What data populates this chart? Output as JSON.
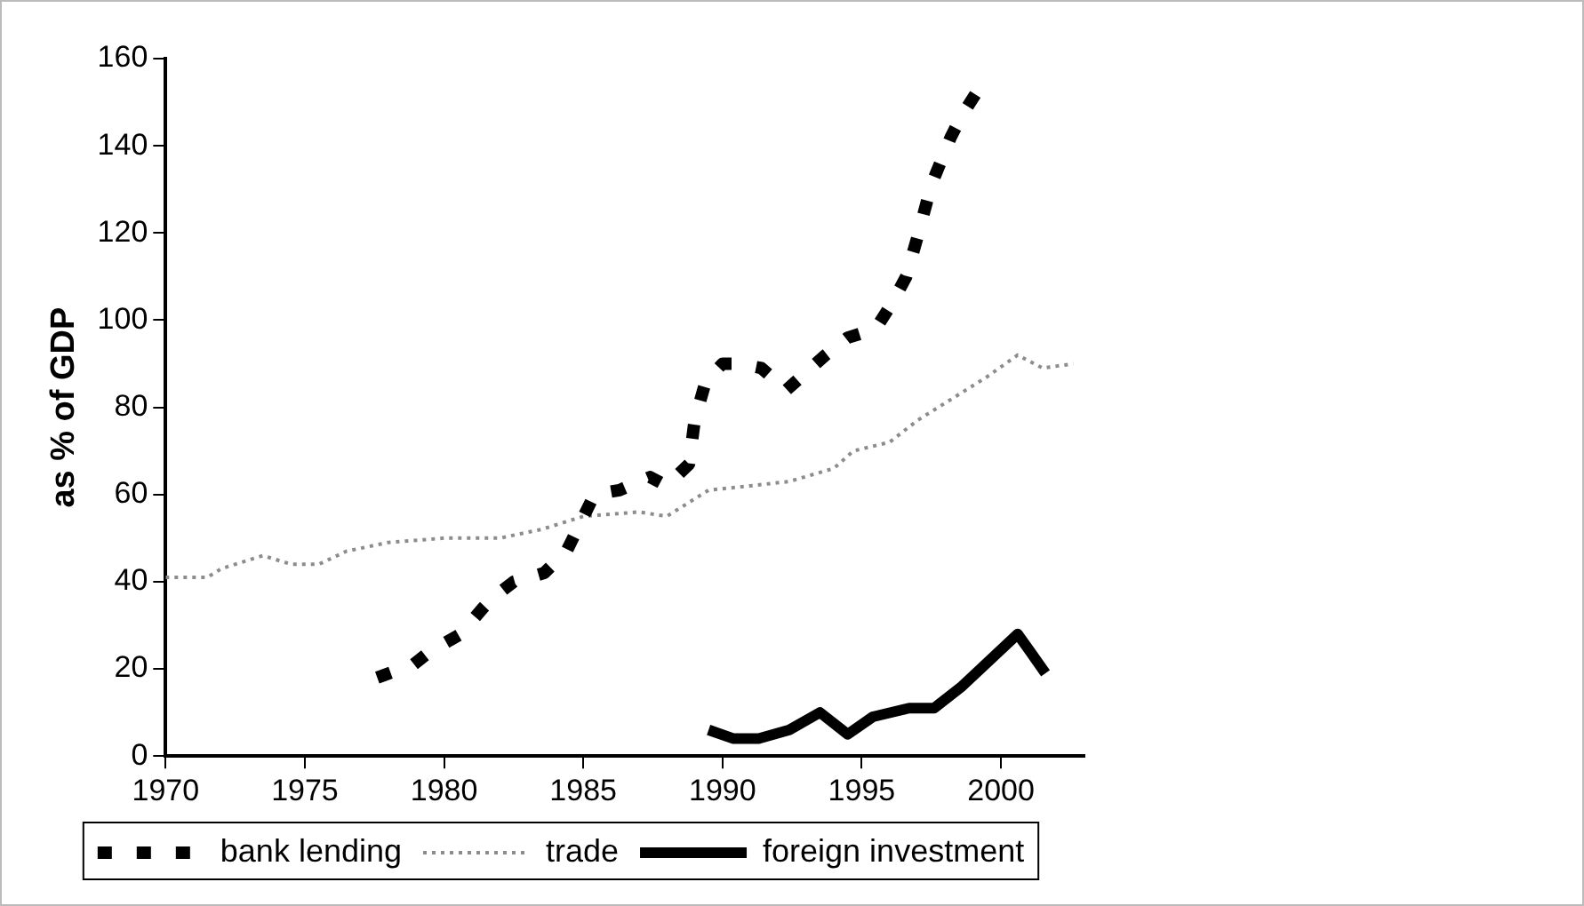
{
  "chart_data": {
    "type": "line",
    "ylabel": "as % of GDP",
    "xlim": [
      1970,
      2003
    ],
    "xticks": [
      1970,
      1975,
      1980,
      1985,
      1990,
      1995,
      2000
    ],
    "ylim": [
      0,
      160
    ],
    "yticks": [
      0,
      20,
      40,
      60,
      80,
      100,
      120,
      140,
      160
    ],
    "grid": false,
    "legend": "bottom",
    "marker": "none",
    "series": [
      {
        "name": "bank lending",
        "color": "#000000",
        "line_style": "dashed",
        "x": [
          1977.6,
          1978.9,
          1979.5,
          1980.6,
          1981.4,
          1981.7,
          1982.5,
          1983.6,
          1984.4,
          1985.4,
          1986.3,
          1987.4,
          1988,
          1988.8,
          1989,
          1989.4,
          1990,
          1990.6,
          1991.4,
          1992.3,
          1993,
          1993.7,
          1994.5,
          1995.5,
          1996.1,
          1996.6,
          1997,
          1997.5,
          1998.2,
          1998.6,
          1999.2
        ],
        "values": [
          18,
          21,
          24,
          28,
          34,
          36,
          40,
          42,
          47,
          60,
          61,
          64,
          62,
          67,
          77,
          86,
          90,
          90,
          89,
          84,
          88,
          92,
          96,
          98,
          104,
          110,
          119,
          131,
          142,
          147,
          153
        ]
      },
      {
        "name": "trade",
        "color": "#8c8c8c",
        "line_style": "dotted",
        "x": [
          1970,
          1971.5,
          1972,
          1973.5,
          1974.5,
          1975.5,
          1976.5,
          1978,
          1980,
          1982,
          1983.5,
          1985,
          1987,
          1988,
          1989.5,
          1991,
          1992.4,
          1994,
          1994.7,
          1996,
          1997,
          1998.5,
          1999.5,
          2000.6,
          2001.5,
          2002.6
        ],
        "values": [
          41,
          41,
          43,
          46,
          44,
          44,
          47,
          49,
          50,
          50,
          52,
          55,
          56,
          55,
          61,
          62,
          63,
          66,
          70,
          72,
          77,
          83,
          87,
          92,
          89,
          90
        ]
      },
      {
        "name": "foreign investment",
        "color": "#000000",
        "line_style": "solid",
        "x": [
          1989.5,
          1990.4,
          1991.3,
          1992.4,
          1993.5,
          1994.5,
          1995.4,
          1996.7,
          1997.6,
          1998.6,
          2000.6,
          2001.05,
          2001.6
        ],
        "values": [
          6,
          4,
          4,
          6,
          10,
          5,
          9,
          11,
          11,
          16,
          28,
          24,
          19
        ]
      }
    ]
  }
}
